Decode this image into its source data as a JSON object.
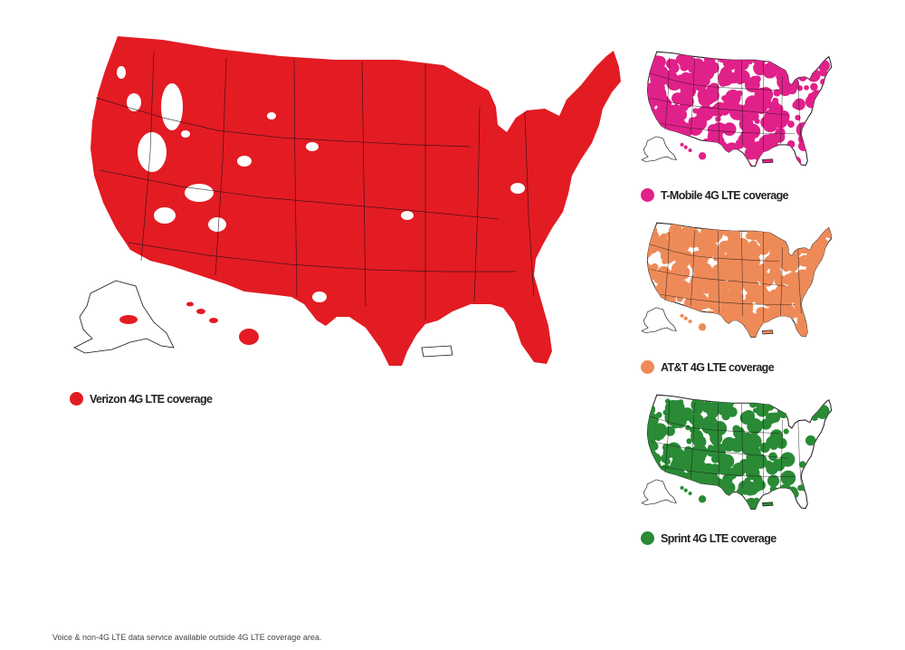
{
  "maps": [
    {
      "id": "verizon",
      "legend": "Verizon 4G LTE coverage",
      "color": "#e31b23",
      "coverage_level": "very high",
      "show_territories": true
    },
    {
      "id": "tmobile",
      "legend": "T-Mobile 4G LTE coverage",
      "color": "#e0218a",
      "coverage_level": "moderate",
      "show_territories": true
    },
    {
      "id": "att",
      "legend": "AT&T 4G LTE coverage",
      "color": "#ee8a58",
      "coverage_level": "high",
      "show_territories": true
    },
    {
      "id": "sprint",
      "legend": "Sprint 4G LTE coverage",
      "color": "#2a8a36",
      "coverage_level": "low",
      "show_territories": true
    }
  ],
  "footnote": "Voice & non-4G LTE data service available outside 4G LTE coverage area."
}
